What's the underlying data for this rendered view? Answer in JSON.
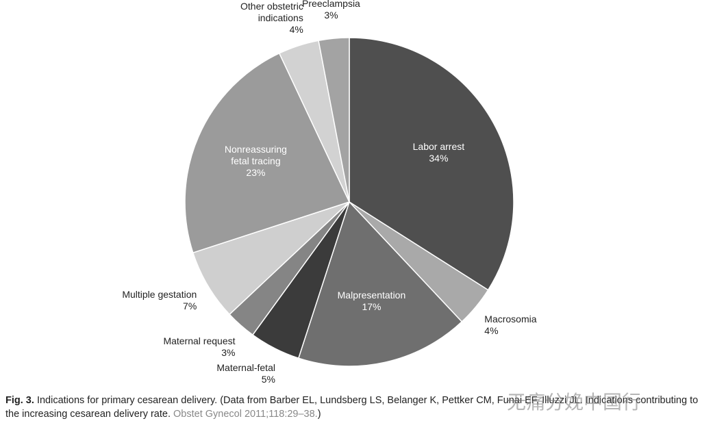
{
  "chart_data": {
    "type": "pie",
    "categories": [
      "Labor arrest",
      "Macrosomia",
      "Malpresentation",
      "Maternal-fetal",
      "Maternal request",
      "Multiple gestation",
      "Nonreassuring fetal tracing",
      "Other obstetric indications",
      "Preeclampsia"
    ],
    "values": [
      34,
      4,
      17,
      5,
      3,
      7,
      23,
      4,
      3
    ],
    "value_labels": [
      "34%",
      "4%",
      "17%",
      "5%",
      "3%",
      "7%",
      "23%",
      "4%",
      "3%"
    ],
    "colors": [
      "#4f4f4f",
      "#a9a9a9",
      "#6f6f6f",
      "#3b3b3b",
      "#858585",
      "#cfcfcf",
      "#9b9b9b",
      "#d2d2d2",
      "#a3a3a3"
    ]
  },
  "caption": {
    "label": "Fig. 3.",
    "text": "Indications for primary cesarean delivery. (Data from Barber EL, Lundsberg LS, Belanger K, Pettker CM, Funai EF, Illuzzi JL. Indications contributing to the increasing cesarean delivery rate.",
    "source": "Obstet Gynecol 2011;118:29–38.",
    "end": ")"
  },
  "watermark": "无痛分娩中国行"
}
